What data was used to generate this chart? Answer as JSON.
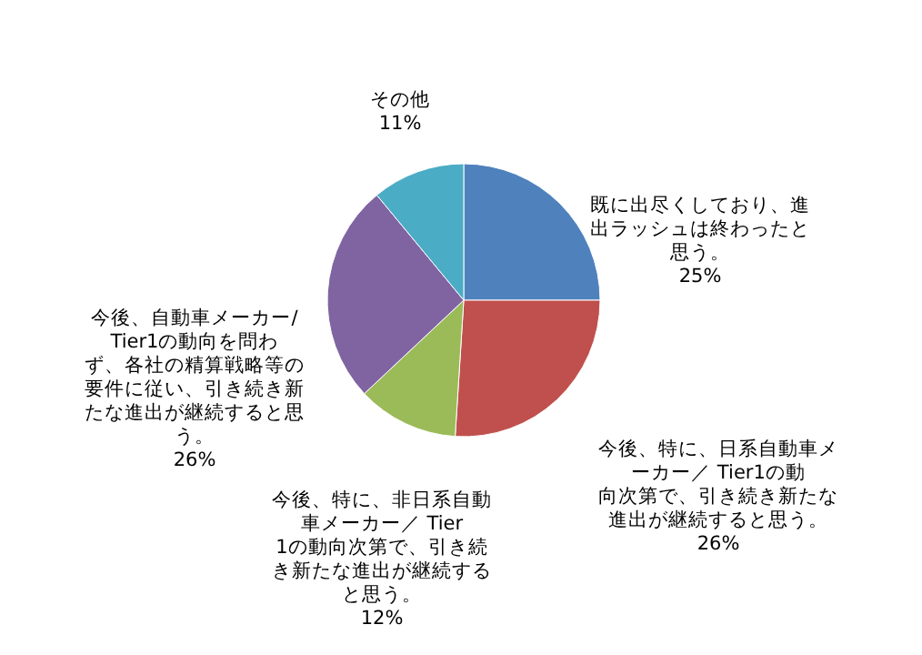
{
  "chart_data": {
    "type": "pie",
    "categories": [
      "既に出尽くしており、進出ラッシュは終わったと思う。",
      "今後、特に、日系自動車メーカー／ Tier1の動向次第で、引き続き新たな進出が継続すると思う。",
      "今後、特に、非日系自動車メーカー／ Tier1の動向次第で、引き続き新たな進出が継続すると思う。",
      "今後、自動車メーカー/Tier1の動向を問わず、各社の精算戦略等の要件に従い、引き続き新たな進出が継続すると思う。",
      "その他"
    ],
    "values": [
      25,
      26,
      12,
      26,
      11
    ],
    "value_labels": [
      "25%",
      "26%",
      "12%",
      "26%",
      "11%"
    ],
    "colors": [
      "#4f81bd",
      "#c0504d",
      "#9bbb59",
      "#8064a2",
      "#4bacc6"
    ]
  }
}
